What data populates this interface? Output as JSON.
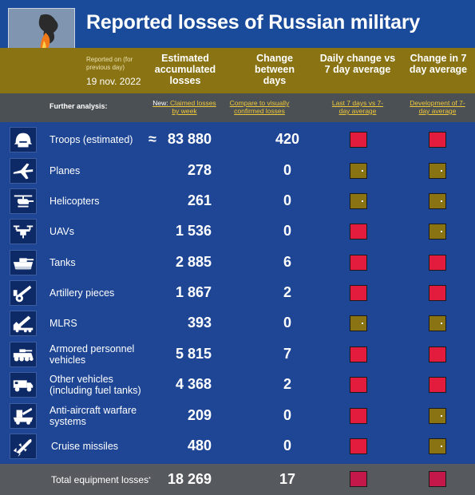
{
  "header": {
    "title": "Reported losses of Russian military",
    "reported_on_label": "Reported on (for previous day)",
    "report_date": "19 nov. 2022"
  },
  "columns": {
    "accumulated": "Estimated accumulated losses",
    "change": "Change between days",
    "daily_vs_avg": "Daily change vs 7 day average",
    "change_avg": "Change in 7 day average"
  },
  "links": {
    "further_label": "Further analysis:",
    "weekly_prefix": "New:",
    "weekly": "Claimed losses by week",
    "compare": "Compare to visually confirmed losses",
    "last7": "Last 7 days vs 7-day average",
    "development": "Development of 7-day average"
  },
  "rows": [
    {
      "label": "Troops (estimated)",
      "approx": "≈",
      "value": "83 880",
      "change": "420",
      "icon": "helmet-icon",
      "ind1": "red",
      "ind2": "red"
    },
    {
      "label": "Planes",
      "value": "278",
      "change": "0",
      "icon": "plane-icon",
      "ind1": "gold",
      "ind2": "gold"
    },
    {
      "label": "Helicopters",
      "value": "261",
      "change": "0",
      "icon": "helicopter-icon",
      "ind1": "gold",
      "ind2": "gold"
    },
    {
      "label": "UAVs",
      "value": "1 536",
      "change": "0",
      "icon": "drone-icon",
      "ind1": "red",
      "ind2": "gold"
    },
    {
      "label": "Tanks",
      "value": "2 885",
      "change": "6",
      "icon": "tank-icon",
      "ind1": "red",
      "ind2": "red"
    },
    {
      "label": "Artillery pieces",
      "value": "1 867",
      "change": "2",
      "icon": "artillery-icon",
      "ind1": "red",
      "ind2": "red"
    },
    {
      "label": "MLRS",
      "value": "393",
      "change": "0",
      "icon": "mlrs-icon",
      "ind1": "gold",
      "ind2": "gold"
    },
    {
      "label": "Armored personnel vehicles",
      "value": "5 815",
      "change": "7",
      "icon": "apc-icon",
      "ind1": "red",
      "ind2": "red"
    },
    {
      "label": "Other vehicles (including fuel tanks)",
      "value": "4 368",
      "change": "2",
      "icon": "truck-icon",
      "ind1": "red",
      "ind2": "red"
    },
    {
      "label": "Anti-aircraft warfare systems",
      "value": "209",
      "change": "0",
      "icon": "anti-aircraft-icon",
      "ind1": "red",
      "ind2": "gold"
    },
    {
      "label": "Cruise missiles",
      "value": "480",
      "change": "0",
      "icon": "missile-icon",
      "ind1": "red",
      "ind2": "gold"
    }
  ],
  "total": {
    "label": "Total equipment losses",
    "footnote_mark": "*",
    "value": "18 269",
    "change": "17",
    "ind1": "red",
    "ind2": "red"
  },
  "colors": {
    "header_blue": "#1a4a9a",
    "main_blue": "#1e4695",
    "gold": "#8a7313",
    "red": "#e31b3c",
    "link_gold": "#f0c838"
  }
}
